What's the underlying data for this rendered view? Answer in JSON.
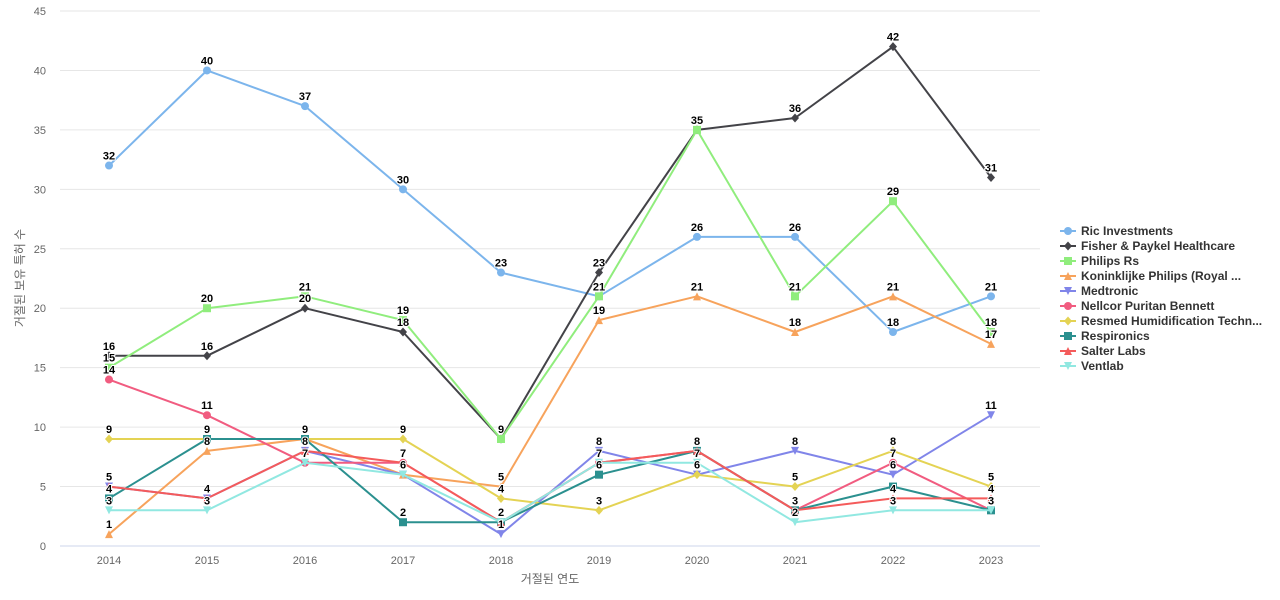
{
  "chart_data": {
    "type": "line",
    "title": "",
    "xlabel": "거절된 연도",
    "ylabel": "거절된 보유 특허 수",
    "categories": [
      "2014",
      "2015",
      "2016",
      "2017",
      "2018",
      "2019",
      "2020",
      "2021",
      "2022",
      "2023"
    ],
    "ylim": [
      0,
      45
    ],
    "yticks": [
      0,
      5,
      10,
      15,
      20,
      25,
      30,
      35,
      40,
      45
    ],
    "grid": true,
    "legend_position": "right",
    "data_labels": true,
    "series": [
      {
        "name": "Ric Investments",
        "color": "#7cb5ec",
        "marker": "circle",
        "values": [
          32,
          40,
          37,
          30,
          23,
          21,
          26,
          26,
          18,
          21
        ]
      },
      {
        "name": "Fisher & Paykel Healthcare",
        "color": "#434348",
        "marker": "diamond",
        "values": [
          16,
          16,
          20,
          18,
          9,
          23,
          35,
          36,
          42,
          31
        ]
      },
      {
        "name": "Philips Rs",
        "color": "#90ed7d",
        "marker": "square",
        "values": [
          15,
          20,
          21,
          19,
          9,
          21,
          35,
          21,
          29,
          18
        ]
      },
      {
        "name": "Koninklijke Philips (Royal ...",
        "color": "#f7a35c",
        "marker": "triangle",
        "values": [
          1,
          8,
          9,
          6,
          5,
          19,
          21,
          18,
          21,
          17
        ]
      },
      {
        "name": "Medtronic",
        "color": "#8085e9",
        "marker": "triangle-down",
        "values": [
          5,
          4,
          8,
          6,
          1,
          8,
          6,
          8,
          6,
          11
        ]
      },
      {
        "name": "Nellcor Puritan Bennett",
        "color": "#f15c80",
        "marker": "circle",
        "values": [
          14,
          11,
          7,
          7,
          2,
          7,
          8,
          3,
          7,
          3
        ]
      },
      {
        "name": "Resmed Humidification Techn...",
        "color": "#e4d354",
        "marker": "diamond",
        "values": [
          9,
          9,
          9,
          9,
          4,
          3,
          6,
          5,
          8,
          5
        ]
      },
      {
        "name": "Respironics",
        "color": "#2b908f",
        "marker": "square",
        "values": [
          4,
          9,
          9,
          2,
          2,
          6,
          8,
          3,
          5,
          3
        ]
      },
      {
        "name": "Salter Labs",
        "color": "#f45b5b",
        "marker": "triangle",
        "values": [
          5,
          4,
          8,
          7,
          2,
          7,
          8,
          3,
          4,
          4
        ]
      },
      {
        "name": "Ventlab",
        "color": "#91e8e1",
        "marker": "triangle-down",
        "values": [
          3,
          3,
          7,
          6,
          2,
          7,
          7,
          2,
          3,
          3
        ]
      }
    ],
    "point_labels": [
      {
        "x": "2014",
        "y": 32,
        "text": "32"
      },
      {
        "x": "2014",
        "y": 16,
        "text": "16"
      },
      {
        "x": "2014",
        "y": 15,
        "text": "15"
      },
      {
        "x": "2014",
        "y": 14,
        "text": "14"
      },
      {
        "x": "2014",
        "y": 9,
        "text": "9"
      },
      {
        "x": "2014",
        "y": 5,
        "text": "5"
      },
      {
        "x": "2014",
        "y": 4,
        "text": "4"
      },
      {
        "x": "2014",
        "y": 3,
        "text": "3"
      },
      {
        "x": "2014",
        "y": 1,
        "text": "1"
      },
      {
        "x": "2015",
        "y": 40,
        "text": "40"
      },
      {
        "x": "2015",
        "y": 20,
        "text": "20"
      },
      {
        "x": "2015",
        "y": 16,
        "text": "16"
      },
      {
        "x": "2015",
        "y": 11,
        "text": "11"
      },
      {
        "x": "2015",
        "y": 9,
        "text": "9"
      },
      {
        "x": "2015",
        "y": 8,
        "text": "8"
      },
      {
        "x": "2015",
        "y": 4,
        "text": "4"
      },
      {
        "x": "2015",
        "y": 3,
        "text": "3"
      },
      {
        "x": "2016",
        "y": 37,
        "text": "37"
      },
      {
        "x": "2016",
        "y": 21,
        "text": "21"
      },
      {
        "x": "2016",
        "y": 20,
        "text": "20"
      },
      {
        "x": "2016",
        "y": 9,
        "text": "9"
      },
      {
        "x": "2016",
        "y": 8,
        "text": "8"
      },
      {
        "x": "2016",
        "y": 7,
        "text": "7"
      },
      {
        "x": "2017",
        "y": 30,
        "text": "30"
      },
      {
        "x": "2017",
        "y": 19,
        "text": "19"
      },
      {
        "x": "2017",
        "y": 18,
        "text": "18"
      },
      {
        "x": "2017",
        "y": 9,
        "text": "9"
      },
      {
        "x": "2017",
        "y": 7,
        "text": "7"
      },
      {
        "x": "2017",
        "y": 6,
        "text": "6"
      },
      {
        "x": "2017",
        "y": 2,
        "text": "2"
      },
      {
        "x": "2018",
        "y": 23,
        "text": "23"
      },
      {
        "x": "2018",
        "y": 9,
        "text": "9"
      },
      {
        "x": "2018",
        "y": 5,
        "text": "5"
      },
      {
        "x": "2018",
        "y": 4,
        "text": "4"
      },
      {
        "x": "2018",
        "y": 2,
        "text": "2"
      },
      {
        "x": "2018",
        "y": 1,
        "text": "1"
      },
      {
        "x": "2019",
        "y": 23,
        "text": "23"
      },
      {
        "x": "2019",
        "y": 21,
        "text": "21"
      },
      {
        "x": "2019",
        "y": 19,
        "text": "19"
      },
      {
        "x": "2019",
        "y": 8,
        "text": "8"
      },
      {
        "x": "2019",
        "y": 7,
        "text": "7"
      },
      {
        "x": "2019",
        "y": 6,
        "text": "6"
      },
      {
        "x": "2019",
        "y": 3,
        "text": "3"
      },
      {
        "x": "2020",
        "y": 35,
        "text": "35"
      },
      {
        "x": "2020",
        "y": 26,
        "text": "26"
      },
      {
        "x": "2020",
        "y": 21,
        "text": "21"
      },
      {
        "x": "2020",
        "y": 8,
        "text": "8"
      },
      {
        "x": "2020",
        "y": 7,
        "text": "7"
      },
      {
        "x": "2020",
        "y": 6,
        "text": "6"
      },
      {
        "x": "2021",
        "y": 36,
        "text": "36"
      },
      {
        "x": "2021",
        "y": 26,
        "text": "26"
      },
      {
        "x": "2021",
        "y": 21,
        "text": "21"
      },
      {
        "x": "2021",
        "y": 18,
        "text": "18"
      },
      {
        "x": "2021",
        "y": 8,
        "text": "8"
      },
      {
        "x": "2021",
        "y": 5,
        "text": "5"
      },
      {
        "x": "2021",
        "y": 3,
        "text": "3"
      },
      {
        "x": "2021",
        "y": 2,
        "text": "2"
      },
      {
        "x": "2022",
        "y": 42,
        "text": "42"
      },
      {
        "x": "2022",
        "y": 29,
        "text": "29"
      },
      {
        "x": "2022",
        "y": 21,
        "text": "21"
      },
      {
        "x": "2022",
        "y": 18,
        "text": "18"
      },
      {
        "x": "2022",
        "y": 8,
        "text": "8"
      },
      {
        "x": "2022",
        "y": 7,
        "text": "7"
      },
      {
        "x": "2022",
        "y": 6,
        "text": "6"
      },
      {
        "x": "2022",
        "y": 4,
        "text": "4"
      },
      {
        "x": "2022",
        "y": 3,
        "text": "3"
      },
      {
        "x": "2023",
        "y": 31,
        "text": "31"
      },
      {
        "x": "2023",
        "y": 21,
        "text": "21"
      },
      {
        "x": "2023",
        "y": 18,
        "text": "18"
      },
      {
        "x": "2023",
        "y": 17,
        "text": "17"
      },
      {
        "x": "2023",
        "y": 11,
        "text": "11"
      },
      {
        "x": "2023",
        "y": 5,
        "text": "5"
      },
      {
        "x": "2023",
        "y": 4,
        "text": "4"
      },
      {
        "x": "2023",
        "y": 3,
        "text": "3"
      }
    ]
  }
}
